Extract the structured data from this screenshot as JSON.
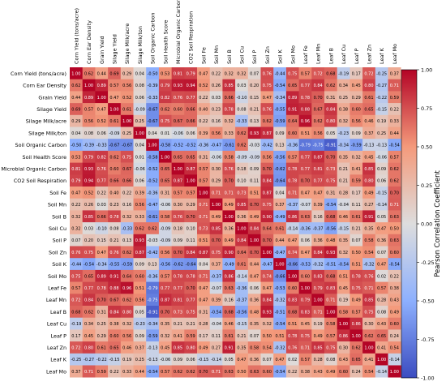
{
  "chart_data": {
    "type": "heatmap",
    "variables": [
      "Corn Yield (tons/acre)",
      "Corn Ear Density",
      "Grain Yield",
      "Silage Yield",
      "Silage Milk/acre",
      "Silage Milk/ton",
      "Soil Organic Carbon",
      "Soil Health Score",
      "Microbial Organic Carbon",
      "CO2 Soil Respiration",
      "Soil Fe",
      "Soil Mn",
      "Soil B",
      "Soil Cu",
      "Soil P",
      "Soil Zn",
      "Soil K",
      "Soil Mo",
      "Leaf Fe",
      "Leaf Mn",
      "Leaf B",
      "Leaf Cu",
      "Leaf P",
      "Leaf Zn",
      "Leaf K",
      "Leaf Mo"
    ],
    "matrix": [
      [
        "1.00",
        "0.62",
        "0.44",
        "0.69",
        "0.29",
        "0.04",
        "-0.50",
        "0.53",
        "0.81",
        "0.79",
        "0.47",
        "0.22",
        "0.32",
        "0.32",
        "0.07",
        "0.76",
        "-0.44",
        "0.75",
        "0.57",
        "0.72",
        "0.68",
        "-0.19",
        "0.17",
        "0.72",
        "-0.25",
        "0.37"
      ],
      [
        "0.62",
        "1.00",
        "0.89",
        "0.57",
        "0.56",
        "0.08",
        "-0.39",
        "0.79",
        "0.93",
        "0.94",
        "0.52",
        "0.26",
        "0.85",
        "0.03",
        "0.20",
        "0.75",
        "-0.54",
        "0.65",
        "0.77",
        "0.84",
        "0.62",
        "0.34",
        "0.45",
        "0.80",
        "-0.27",
        "0.71"
      ],
      [
        "0.44",
        "0.89",
        "1.00",
        "0.47",
        "0.52",
        "0.06",
        "-0.33",
        "0.82",
        "0.76",
        "0.77",
        "0.22",
        "0.03",
        "0.66",
        "-0.10",
        "0.15",
        "0.47",
        "-0.34",
        "0.89",
        "0.78",
        "0.70",
        "0.31",
        "0.25",
        "0.29",
        "0.61",
        "-0.22",
        "0.59"
      ],
      [
        "0.69",
        "0.57",
        "0.47",
        "1.00",
        "0.61",
        "-0.09",
        "-0.67",
        "0.62",
        "0.60",
        "0.66",
        "0.40",
        "0.23",
        "0.78",
        "0.08",
        "0.21",
        "0.76",
        "-0.55",
        "0.91",
        "0.88",
        "0.67",
        "0.84",
        "0.38",
        "0.60",
        "0.65",
        "-0.15",
        "0.22"
      ],
      [
        "0.29",
        "0.56",
        "0.52",
        "0.61",
        "1.00",
        "0.25",
        "-0.67",
        "0.75",
        "0.67",
        "0.66",
        "0.22",
        "0.16",
        "0.32",
        "-0.33",
        "0.13",
        "0.62",
        "-0.59",
        "0.64",
        "0.96",
        "0.62",
        "0.80",
        "0.32",
        "0.56",
        "0.46",
        "0.19",
        "0.33"
      ],
      [
        "0.04",
        "0.08",
        "0.06",
        "-0.09",
        "0.25",
        "1.00",
        "0.04",
        "0.01",
        "-0.06",
        "0.06",
        "0.39",
        "0.56",
        "0.33",
        "0.62",
        "0.93",
        "0.87",
        "0.09",
        "0.60",
        "0.51",
        "0.56",
        "0.05",
        "-0.23",
        "0.09",
        "0.37",
        "0.25",
        "0.44"
      ],
      [
        "-0.50",
        "-0.39",
        "-0.33",
        "-0.67",
        "-0.67",
        "0.04",
        "1.00",
        "-0.58",
        "-0.52",
        "-0.52",
        "-0.36",
        "-0.47",
        "-0.61",
        "0.62",
        "-0.03",
        "-0.42",
        "0.13",
        "-0.36",
        "-0.79",
        "-0.75",
        "-0.91",
        "-0.34",
        "-0.59",
        "-0.13",
        "-0.13",
        "-0.54"
      ],
      [
        "0.53",
        "0.79",
        "0.82",
        "0.62",
        "0.75",
        "0.01",
        "-0.58",
        "1.00",
        "0.65",
        "0.65",
        "0.31",
        "-0.06",
        "0.58",
        "-0.09",
        "-0.09",
        "0.56",
        "-0.56",
        "0.57",
        "0.77",
        "0.87",
        "0.70",
        "0.35",
        "0.32",
        "0.45",
        "-0.06",
        "0.57"
      ],
      [
        "0.81",
        "0.93",
        "0.76",
        "0.60",
        "0.67",
        "-0.06",
        "-0.52",
        "0.65",
        "1.00",
        "0.87",
        "0.57",
        "0.30",
        "0.76",
        "0.18",
        "0.09",
        "0.70",
        "-0.62",
        "0.78",
        "0.77",
        "0.81",
        "0.73",
        "0.21",
        "0.41",
        "0.85",
        "0.09",
        "0.62"
      ],
      [
        "0.79",
        "0.94",
        "0.77",
        "0.66",
        "0.66",
        "0.06",
        "-0.52",
        "0.65",
        "0.87",
        "1.00",
        "0.57",
        "0.29",
        "0.70",
        "0.10",
        "0.11",
        "0.84",
        "-0.64",
        "0.78",
        "0.70",
        "0.77",
        "0.75",
        "0.21",
        "0.59",
        "0.80",
        "0.06",
        "0.62"
      ],
      [
        "0.47",
        "0.52",
        "0.22",
        "0.40",
        "0.22",
        "0.39",
        "-0.36",
        "0.31",
        "0.57",
        "0.57",
        "1.00",
        "0.71",
        "0.71",
        "0.73",
        "0.51",
        "0.87",
        "0.04",
        "0.71",
        "0.47",
        "0.47",
        "0.31",
        "0.28",
        "0.17",
        "0.49",
        "-0.15",
        "0.70"
      ],
      [
        "0.22",
        "0.26",
        "0.03",
        "0.23",
        "0.16",
        "0.56",
        "-0.47",
        "-0.06",
        "0.30",
        "0.29",
        "0.71",
        "1.00",
        "0.49",
        "0.85",
        "0.70",
        "0.75",
        "0.37",
        "-0.37",
        "-0.07",
        "0.39",
        "-0.54",
        "-0.04",
        "0.11",
        "0.27",
        "-0.14",
        "0.71"
      ],
      [
        "0.32",
        "0.85",
        "0.66",
        "0.78",
        "0.32",
        "0.33",
        "-0.61",
        "0.58",
        "0.76",
        "0.70",
        "0.71",
        "0.49",
        "1.00",
        "0.36",
        "0.49",
        "0.90",
        "-0.49",
        "0.86",
        "0.63",
        "0.16",
        "0.68",
        "0.46",
        "0.61",
        "0.91",
        "0.05",
        "0.63"
      ],
      [
        "0.32",
        "0.03",
        "-0.10",
        "0.08",
        "-0.33",
        "0.62",
        "0.62",
        "-0.09",
        "0.18",
        "0.10",
        "0.73",
        "0.85",
        "0.36",
        "1.00",
        "0.84",
        "0.64",
        "0.61",
        "-0.14",
        "-0.36",
        "-0.37",
        "-0.56",
        "-0.15",
        "0.21",
        "0.35",
        "0.47",
        "0.50"
      ],
      [
        "0.07",
        "0.20",
        "0.15",
        "0.21",
        "0.13",
        "0.93",
        "-0.03",
        "-0.09",
        "0.09",
        "0.11",
        "0.51",
        "0.70",
        "0.49",
        "0.84",
        "1.00",
        "0.70",
        "0.44",
        "0.47",
        "0.06",
        "0.36",
        "0.48",
        "0.35",
        "0.07",
        "0.58",
        "0.36",
        "0.63"
      ],
      [
        "0.76",
        "0.75",
        "0.47",
        "0.76",
        "0.62",
        "0.87",
        "-0.42",
        "0.56",
        "0.70",
        "0.84",
        "0.87",
        "0.75",
        "0.90",
        "0.64",
        "0.70",
        "1.00",
        "-0.47",
        "0.74",
        "0.47",
        "0.84",
        "0.93",
        "0.32",
        "0.50",
        "0.54",
        "0.07",
        "0.60"
      ],
      [
        "-0.44",
        "-0.54",
        "-0.34",
        "-0.55",
        "-0.59",
        "0.09",
        "0.13",
        "-0.56",
        "-0.62",
        "-0.64",
        "0.04",
        "0.37",
        "-0.49",
        "0.61",
        "0.44",
        "-0.47",
        "1.00",
        "-0.66",
        "-0.53",
        "-0.32",
        "-0.51",
        "-0.54",
        "0.51",
        "-0.32",
        "0.47",
        "-0.54"
      ],
      [
        "0.75",
        "0.65",
        "0.89",
        "0.91",
        "0.64",
        "0.60",
        "-0.36",
        "0.57",
        "0.78",
        "0.78",
        "0.71",
        "-0.37",
        "0.86",
        "-0.14",
        "0.47",
        "0.74",
        "-0.66",
        "1.00",
        "0.60",
        "0.83",
        "0.68",
        "0.51",
        "0.78",
        "0.76",
        "0.02",
        "0.22"
      ],
      [
        "0.57",
        "0.77",
        "0.78",
        "0.88",
        "0.96",
        "0.51",
        "-0.79",
        "0.77",
        "0.77",
        "0.70",
        "0.47",
        "-0.07",
        "0.63",
        "-0.36",
        "0.06",
        "0.47",
        "-0.53",
        "0.60",
        "1.00",
        "0.79",
        "0.83",
        "0.45",
        "0.75",
        "0.71",
        "0.57",
        "0.38"
      ],
      [
        "0.72",
        "0.84",
        "0.70",
        "0.67",
        "0.62",
        "0.56",
        "-0.75",
        "0.87",
        "0.81",
        "0.77",
        "0.47",
        "0.39",
        "0.16",
        "-0.37",
        "0.36",
        "0.84",
        "-0.32",
        "0.83",
        "0.79",
        "1.00",
        "0.71",
        "0.19",
        "0.49",
        "0.85",
        "0.28",
        "0.43"
      ],
      [
        "0.68",
        "0.62",
        "0.31",
        "0.84",
        "0.80",
        "0.05",
        "-0.91",
        "0.70",
        "0.73",
        "0.75",
        "0.31",
        "-0.54",
        "0.68",
        "-0.56",
        "0.48",
        "0.93",
        "-0.51",
        "0.68",
        "0.83",
        "0.71",
        "1.00",
        "0.58",
        "0.57",
        "0.75",
        "0.08",
        "0.49"
      ],
      [
        "-0.19",
        "0.34",
        "0.25",
        "0.38",
        "0.32",
        "-0.23",
        "-0.34",
        "0.35",
        "0.21",
        "0.21",
        "0.28",
        "-0.04",
        "0.46",
        "-0.15",
        "0.35",
        "0.32",
        "-0.54",
        "0.51",
        "0.45",
        "0.19",
        "0.58",
        "1.00",
        "0.86",
        "0.30",
        "0.43",
        "0.60"
      ],
      [
        "0.17",
        "0.45",
        "0.29",
        "0.60",
        "0.56",
        "0.09",
        "-0.59",
        "0.32",
        "0.41",
        "0.59",
        "0.17",
        "0.11",
        "0.61",
        "0.21",
        "0.07",
        "0.50",
        "0.51",
        "0.78",
        "0.75",
        "0.49",
        "0.57",
        "0.86",
        "1.00",
        "0.62",
        "0.65",
        "0.24"
      ],
      [
        "0.72",
        "0.80",
        "0.61",
        "0.65",
        "0.46",
        "0.37",
        "-0.13",
        "0.45",
        "0.85",
        "0.80",
        "0.49",
        "0.27",
        "0.91",
        "0.35",
        "0.58",
        "0.54",
        "-0.32",
        "0.76",
        "0.71",
        "0.85",
        "0.75",
        "0.30",
        "0.62",
        "1.00",
        "0.41",
        "0.54"
      ],
      [
        "-0.25",
        "-0.27",
        "-0.22",
        "-0.15",
        "0.19",
        "0.25",
        "-0.13",
        "-0.06",
        "0.09",
        "0.06",
        "-0.15",
        "-0.14",
        "0.05",
        "0.47",
        "0.36",
        "0.07",
        "0.47",
        "0.02",
        "0.57",
        "0.28",
        "0.08",
        "0.43",
        "0.65",
        "0.41",
        "1.00",
        "-0.14"
      ],
      [
        "0.37",
        "0.71",
        "0.59",
        "0.22",
        "0.33",
        "0.44",
        "-0.54",
        "0.57",
        "0.62",
        "0.62",
        "0.70",
        "0.71",
        "0.63",
        "0.50",
        "0.63",
        "0.60",
        "-0.54",
        "0.22",
        "0.38",
        "0.43",
        "0.49",
        "0.60",
        "0.24",
        "0.54",
        "-0.14",
        "1.00"
      ]
    ],
    "colorbar": {
      "label": "Pearson Correlation Coefficient",
      "ticks": [
        "1.00",
        "0.75",
        "0.50",
        "0.25",
        "0.00",
        "-0.25",
        "-0.50",
        "-0.75",
        "-1.00"
      ],
      "range": [
        -1,
        1
      ]
    },
    "colormap": {
      "negative": "#3b4cc0",
      "neutral": "#dddddd",
      "positive": "#b40426"
    }
  }
}
